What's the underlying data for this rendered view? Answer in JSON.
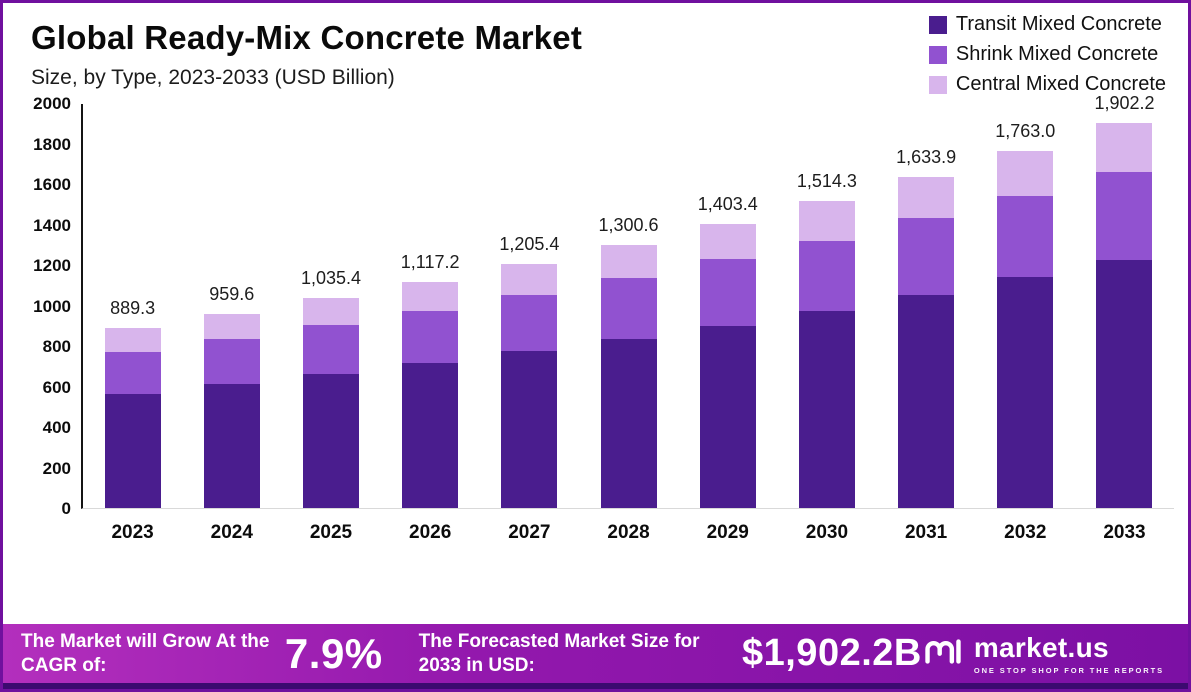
{
  "header": {
    "title": "Global Ready-Mix Concrete Market",
    "subtitle": "Size, by Type, 2023-2033 (USD Billion)"
  },
  "chart_data": {
    "type": "bar",
    "stacked": true,
    "title": "Global Ready-Mix Concrete Market Size, by Type, 2023-2033 (USD Billion)",
    "xlabel": "",
    "ylabel": "USD Billion",
    "ylim": [
      0,
      2000
    ],
    "yticks": [
      0,
      200,
      400,
      600,
      800,
      1000,
      1200,
      1400,
      1600,
      1800,
      2000
    ],
    "grid": false,
    "legend_position": "top-right",
    "categories": [
      "2023",
      "2024",
      "2025",
      "2026",
      "2027",
      "2028",
      "2029",
      "2030",
      "2031",
      "2032",
      "2033"
    ],
    "series": [
      {
        "name": "Transit Mixed Concrete",
        "color": "#4a1d8e",
        "values": [
          565,
          612,
          660,
          715,
          775,
          835,
          900,
          975,
          1050,
          1140,
          1225
        ]
      },
      {
        "name": "Shrink Mixed Concrete",
        "color": "#9152d0",
        "values": [
          205,
          225,
          242,
          258,
          275,
          300,
          328,
          345,
          380,
          400,
          435
        ]
      },
      {
        "name": "Central Mixed Concrete",
        "color": "#d8b5ec",
        "values": [
          119.3,
          122.6,
          133.4,
          144.2,
          155.4,
          165.6,
          175.4,
          194.3,
          203.9,
          223.0,
          242.2
        ]
      }
    ],
    "totals": [
      889.3,
      959.6,
      1035.4,
      1117.2,
      1205.4,
      1300.6,
      1403.4,
      1514.3,
      1633.9,
      1763.0,
      1902.2
    ],
    "total_labels": [
      "889.3",
      "959.6",
      "1,035.4",
      "1,117.2",
      "1,205.4",
      "1,300.6",
      "1,403.4",
      "1,514.3",
      "1,633.9",
      "1,763.0",
      "1,902.2"
    ]
  },
  "footer": {
    "cagr_label": "The Market will Grow At the CAGR of:",
    "cagr_value": "7.9%",
    "forecast_label": "The Forecasted Market Size for 2033 in USD:",
    "forecast_value": "$1,902.2B",
    "brand": "market.us",
    "tagline": "ONE STOP SHOP FOR THE REPORTS"
  }
}
